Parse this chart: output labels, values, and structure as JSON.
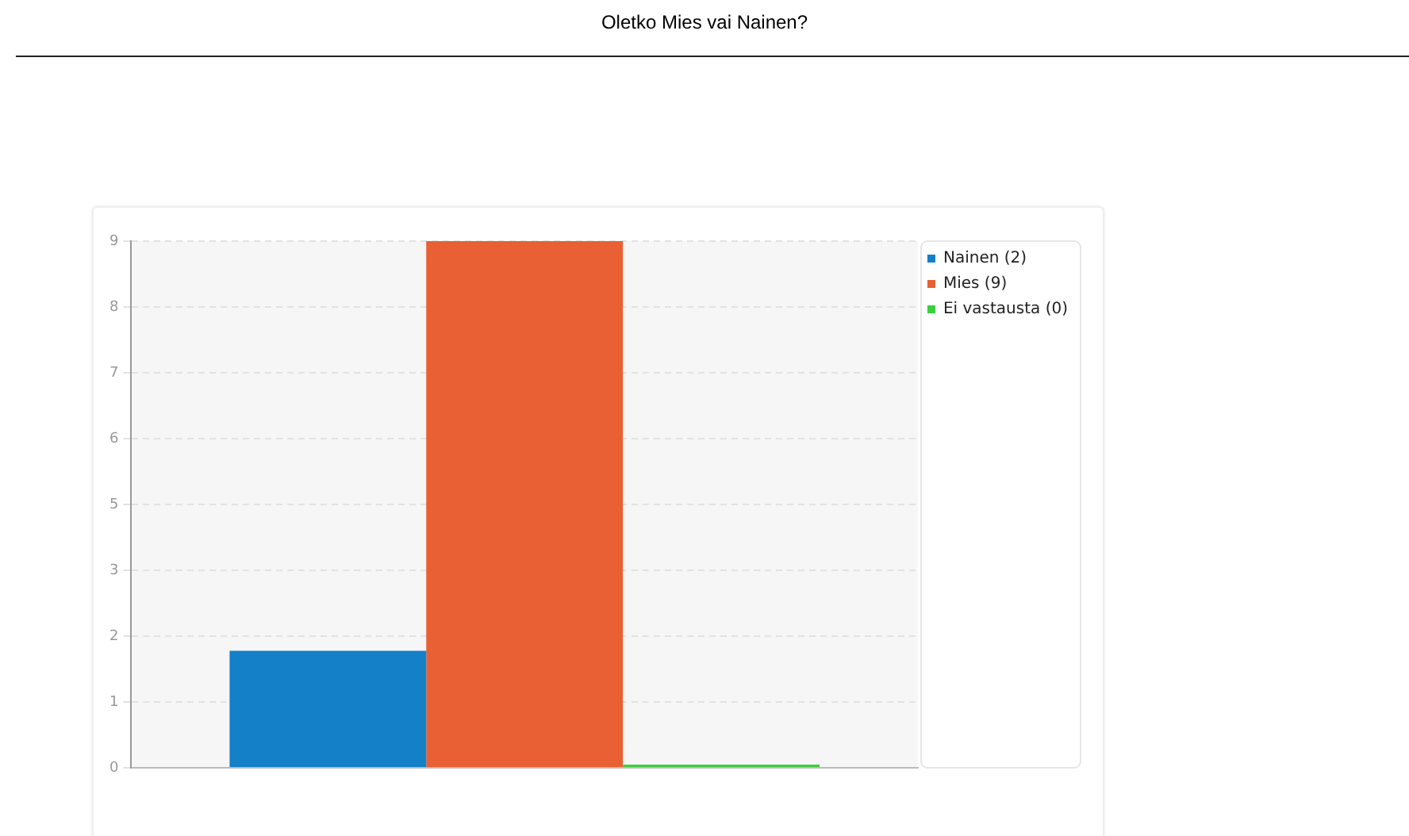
{
  "chart_data": {
    "type": "bar",
    "title": "Oletko Mies vai Nainen?",
    "categories": [
      null
    ],
    "series": [
      {
        "name": "Nainen (2)",
        "color": "#1380c8",
        "values": [
          2
        ]
      },
      {
        "name": "Mies (9)",
        "color": "#e86033",
        "values": [
          9
        ]
      },
      {
        "name": "Ei vastausta (0)",
        "color": "#3ccf3c",
        "values": [
          0
        ]
      }
    ],
    "ylim": [
      0,
      9
    ],
    "yticks": [
      0,
      {
        "value": 1.125,
        "label": "1"
      },
      {
        "value": 2.25,
        "label": "2"
      },
      {
        "value": 3.375,
        "label": "3"
      },
      {
        "value": 4.5,
        "label": "5"
      },
      {
        "value": 5.625,
        "label": "6"
      },
      {
        "value": 6.75,
        "label": "7"
      },
      {
        "value": 7.875,
        "label": "8"
      },
      9
    ],
    "grid": "y",
    "legend": "top right"
  }
}
